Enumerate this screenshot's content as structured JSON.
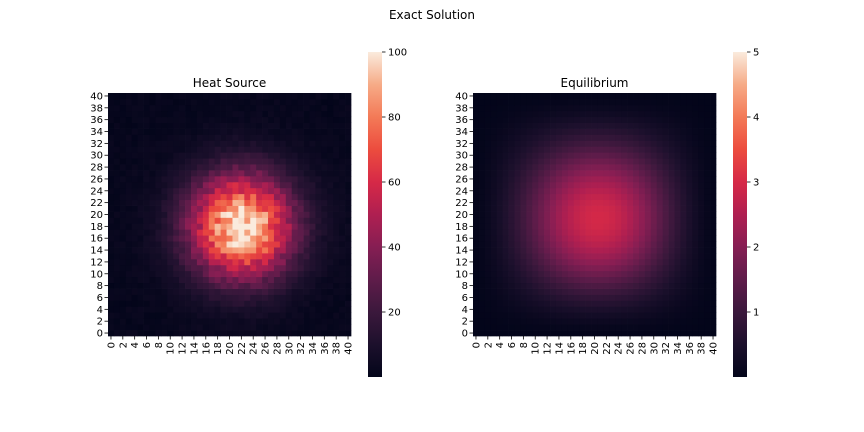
{
  "figure": {
    "suptitle": "Exact Solution"
  },
  "chart_data": [
    {
      "type": "heatmap",
      "title": "Heat Source",
      "grid_size": 41,
      "x_tick_labels": [
        "0",
        "2",
        "4",
        "6",
        "8",
        "10",
        "12",
        "14",
        "16",
        "18",
        "20",
        "22",
        "24",
        "26",
        "28",
        "30",
        "32",
        "34",
        "36",
        "38",
        "40"
      ],
      "y_tick_labels": [
        "0",
        "2",
        "4",
        "6",
        "8",
        "10",
        "12",
        "14",
        "16",
        "18",
        "20",
        "22",
        "24",
        "26",
        "28",
        "30",
        "32",
        "34",
        "36",
        "38",
        "40"
      ],
      "colorbar": {
        "ticks": [
          "20",
          "40",
          "60",
          "80",
          "100"
        ],
        "range": [
          0,
          100
        ]
      },
      "colormap": "rocket",
      "value_model": {
        "kind": "gaussian",
        "center": [
          22,
          18
        ],
        "peak": 100,
        "sigma": 6.2,
        "noise": 0.16
      }
    },
    {
      "type": "heatmap",
      "title": "Equilibrium",
      "grid_size": 41,
      "x_tick_labels": [
        "0",
        "2",
        "4",
        "6",
        "8",
        "10",
        "12",
        "14",
        "16",
        "18",
        "20",
        "22",
        "24",
        "26",
        "28",
        "30",
        "32",
        "34",
        "36",
        "38",
        "40"
      ],
      "y_tick_labels": [
        "0",
        "2",
        "4",
        "6",
        "8",
        "10",
        "12",
        "14",
        "16",
        "18",
        "20",
        "22",
        "24",
        "26",
        "28",
        "30",
        "32",
        "34",
        "36",
        "38",
        "40"
      ],
      "colorbar": {
        "ticks": [
          "1",
          "2",
          "3",
          "4",
          "5"
        ],
        "range": [
          0,
          5
        ]
      },
      "colormap": "rocket",
      "value_model": {
        "kind": "smooth-dome",
        "center": [
          22,
          18
        ],
        "peak": 3.0,
        "width": 13.5
      }
    }
  ]
}
